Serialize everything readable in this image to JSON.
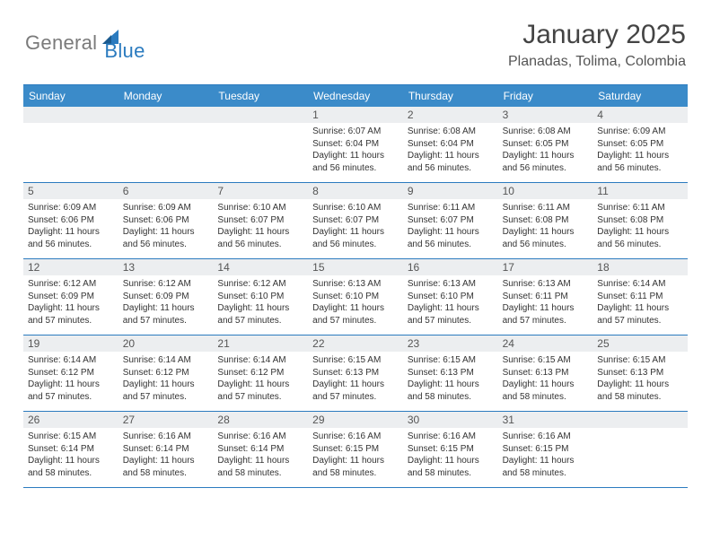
{
  "logo": {
    "general": "General",
    "blue": "Blue"
  },
  "title": "January 2025",
  "location": "Planadas, Tolima, Colombia",
  "colors": {
    "header_bg": "#3b8bc9",
    "border": "#2b7bbf",
    "daynum_bg": "#eceef0",
    "text": "#333333",
    "logo_gray": "#7a7a7a",
    "logo_blue": "#2b7bbf"
  },
  "weekdays": [
    "Sunday",
    "Monday",
    "Tuesday",
    "Wednesday",
    "Thursday",
    "Friday",
    "Saturday"
  ],
  "weeks": [
    [
      null,
      null,
      null,
      {
        "n": "1",
        "sr": "6:07 AM",
        "ss": "6:04 PM",
        "dl": "11 hours and 56 minutes."
      },
      {
        "n": "2",
        "sr": "6:08 AM",
        "ss": "6:04 PM",
        "dl": "11 hours and 56 minutes."
      },
      {
        "n": "3",
        "sr": "6:08 AM",
        "ss": "6:05 PM",
        "dl": "11 hours and 56 minutes."
      },
      {
        "n": "4",
        "sr": "6:09 AM",
        "ss": "6:05 PM",
        "dl": "11 hours and 56 minutes."
      }
    ],
    [
      {
        "n": "5",
        "sr": "6:09 AM",
        "ss": "6:06 PM",
        "dl": "11 hours and 56 minutes."
      },
      {
        "n": "6",
        "sr": "6:09 AM",
        "ss": "6:06 PM",
        "dl": "11 hours and 56 minutes."
      },
      {
        "n": "7",
        "sr": "6:10 AM",
        "ss": "6:07 PM",
        "dl": "11 hours and 56 minutes."
      },
      {
        "n": "8",
        "sr": "6:10 AM",
        "ss": "6:07 PM",
        "dl": "11 hours and 56 minutes."
      },
      {
        "n": "9",
        "sr": "6:11 AM",
        "ss": "6:07 PM",
        "dl": "11 hours and 56 minutes."
      },
      {
        "n": "10",
        "sr": "6:11 AM",
        "ss": "6:08 PM",
        "dl": "11 hours and 56 minutes."
      },
      {
        "n": "11",
        "sr": "6:11 AM",
        "ss": "6:08 PM",
        "dl": "11 hours and 56 minutes."
      }
    ],
    [
      {
        "n": "12",
        "sr": "6:12 AM",
        "ss": "6:09 PM",
        "dl": "11 hours and 57 minutes."
      },
      {
        "n": "13",
        "sr": "6:12 AM",
        "ss": "6:09 PM",
        "dl": "11 hours and 57 minutes."
      },
      {
        "n": "14",
        "sr": "6:12 AM",
        "ss": "6:10 PM",
        "dl": "11 hours and 57 minutes."
      },
      {
        "n": "15",
        "sr": "6:13 AM",
        "ss": "6:10 PM",
        "dl": "11 hours and 57 minutes."
      },
      {
        "n": "16",
        "sr": "6:13 AM",
        "ss": "6:10 PM",
        "dl": "11 hours and 57 minutes."
      },
      {
        "n": "17",
        "sr": "6:13 AM",
        "ss": "6:11 PM",
        "dl": "11 hours and 57 minutes."
      },
      {
        "n": "18",
        "sr": "6:14 AM",
        "ss": "6:11 PM",
        "dl": "11 hours and 57 minutes."
      }
    ],
    [
      {
        "n": "19",
        "sr": "6:14 AM",
        "ss": "6:12 PM",
        "dl": "11 hours and 57 minutes."
      },
      {
        "n": "20",
        "sr": "6:14 AM",
        "ss": "6:12 PM",
        "dl": "11 hours and 57 minutes."
      },
      {
        "n": "21",
        "sr": "6:14 AM",
        "ss": "6:12 PM",
        "dl": "11 hours and 57 minutes."
      },
      {
        "n": "22",
        "sr": "6:15 AM",
        "ss": "6:13 PM",
        "dl": "11 hours and 57 minutes."
      },
      {
        "n": "23",
        "sr": "6:15 AM",
        "ss": "6:13 PM",
        "dl": "11 hours and 58 minutes."
      },
      {
        "n": "24",
        "sr": "6:15 AM",
        "ss": "6:13 PM",
        "dl": "11 hours and 58 minutes."
      },
      {
        "n": "25",
        "sr": "6:15 AM",
        "ss": "6:13 PM",
        "dl": "11 hours and 58 minutes."
      }
    ],
    [
      {
        "n": "26",
        "sr": "6:15 AM",
        "ss": "6:14 PM",
        "dl": "11 hours and 58 minutes."
      },
      {
        "n": "27",
        "sr": "6:16 AM",
        "ss": "6:14 PM",
        "dl": "11 hours and 58 minutes."
      },
      {
        "n": "28",
        "sr": "6:16 AM",
        "ss": "6:14 PM",
        "dl": "11 hours and 58 minutes."
      },
      {
        "n": "29",
        "sr": "6:16 AM",
        "ss": "6:15 PM",
        "dl": "11 hours and 58 minutes."
      },
      {
        "n": "30",
        "sr": "6:16 AM",
        "ss": "6:15 PM",
        "dl": "11 hours and 58 minutes."
      },
      {
        "n": "31",
        "sr": "6:16 AM",
        "ss": "6:15 PM",
        "dl": "11 hours and 58 minutes."
      },
      null
    ]
  ],
  "labels": {
    "sunrise": "Sunrise: ",
    "sunset": "Sunset: ",
    "daylight": "Daylight: "
  }
}
